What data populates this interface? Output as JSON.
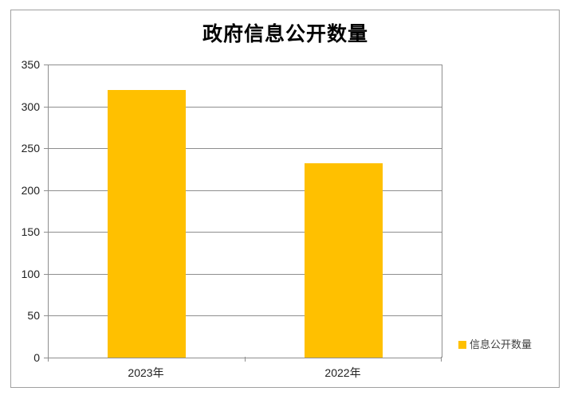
{
  "chart_data": {
    "type": "bar",
    "title": "政府信息公开数量",
    "categories": [
      "2023年",
      "2022年"
    ],
    "series": [
      {
        "name": "信息公开数量",
        "values": [
          320,
          232
        ]
      }
    ],
    "ylim": [
      0,
      350
    ],
    "yticks": [
      0,
      50,
      100,
      150,
      200,
      250,
      300,
      350
    ],
    "xlabel": "",
    "ylabel": "",
    "grid": true,
    "legend_position": "bottom-right",
    "colors": {
      "bar": "#FFC000",
      "gridline": "#8e8e8e",
      "axis": "#8e8e8e",
      "border": "#a0a0a0",
      "title_text": "#000000",
      "tick_text": "#202020",
      "legend_text": "#404040"
    }
  }
}
